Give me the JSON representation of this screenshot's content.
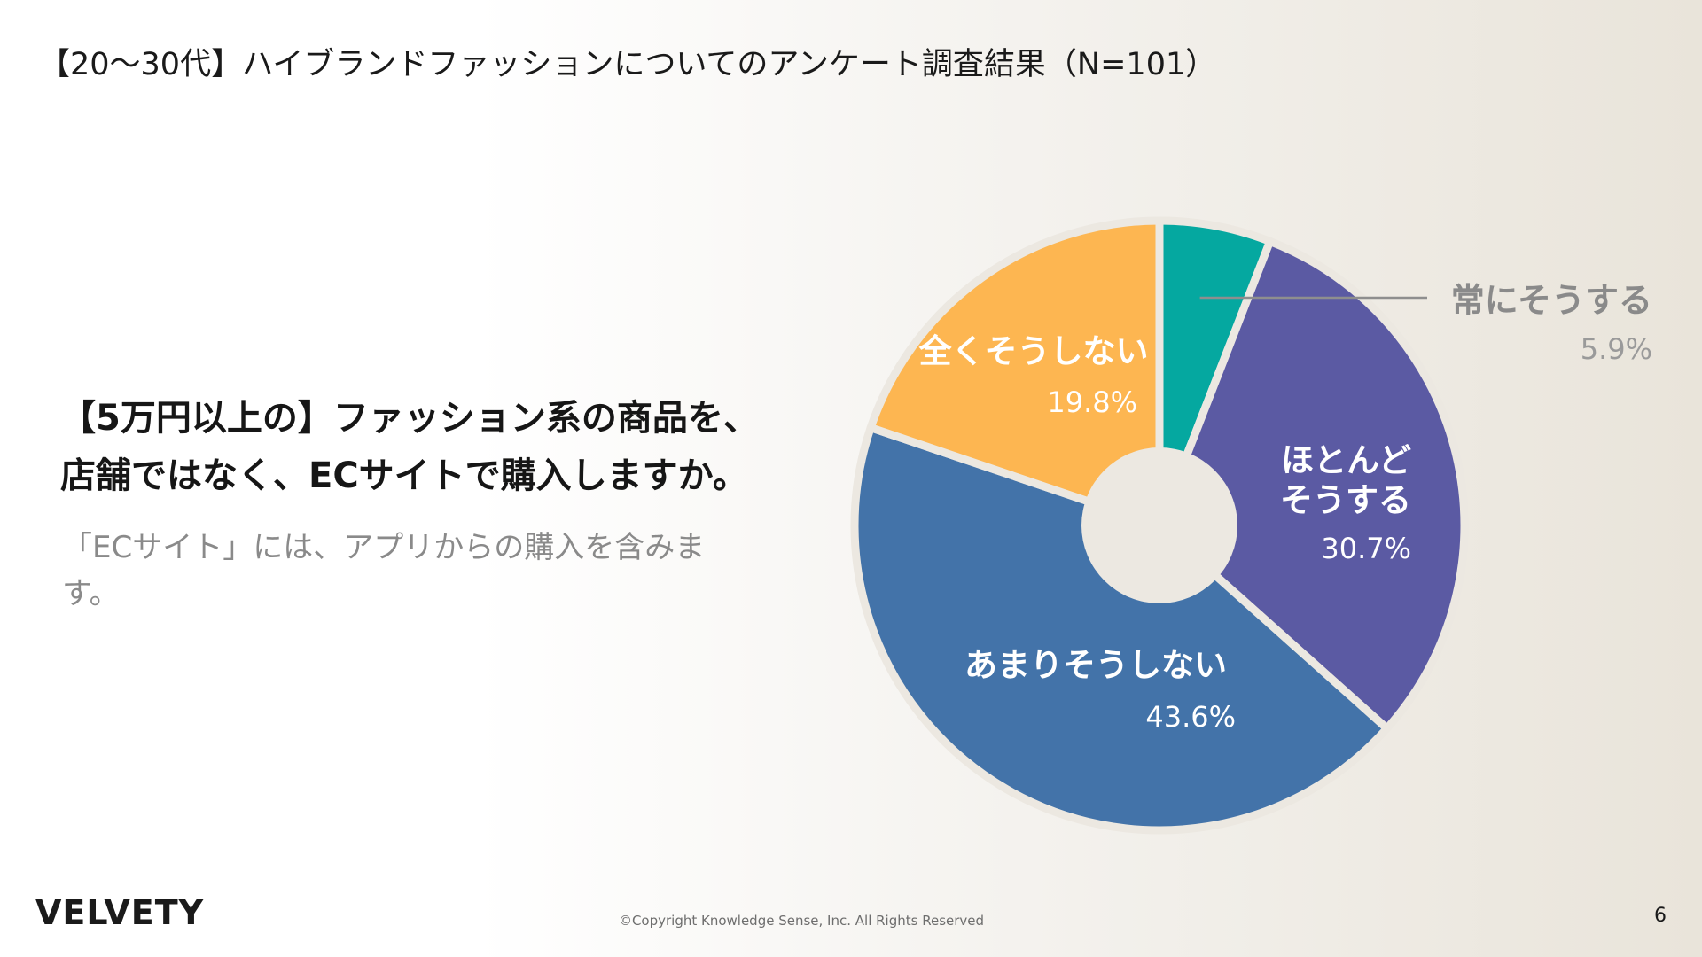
{
  "header": {
    "title": "【20〜30代】ハイブランドファッションについてのアンケート調査結果（N=101）"
  },
  "question": {
    "lines": [
      "【5万円以上の】ファッション系の商品を、",
      "店舗ではなく、ECサイトで購入しますか。"
    ],
    "note": "「ECサイト」には、アプリからの購入を含みます。"
  },
  "chart_data": {
    "type": "pie",
    "variant": "donut",
    "title": "",
    "start": "12 o'clock",
    "direction": "clockwise",
    "slices": [
      {
        "label": "常にそうする",
        "value": 5.9,
        "value_label": "5.9%",
        "color": "#05a8a0",
        "label_placement": "outside"
      },
      {
        "label": "ほとんどそうする",
        "label_lines": [
          "ほとんど",
          "そうする"
        ],
        "value": 30.7,
        "value_label": "30.7%",
        "color": "#5b5aa3",
        "label_placement": "inside"
      },
      {
        "label": "あまりそうしない",
        "value": 43.6,
        "value_label": "43.6%",
        "color": "#4373a9",
        "label_placement": "inside"
      },
      {
        "label": "全くそうしない",
        "value": 19.8,
        "value_label": "19.8%",
        "color": "#fdb651",
        "label_placement": "inside"
      }
    ]
  },
  "footer": {
    "brand": "VELVETY",
    "copyright": "©Copyright Knowledge Sense, Inc. All Rights Reserved",
    "page_number": "6"
  }
}
